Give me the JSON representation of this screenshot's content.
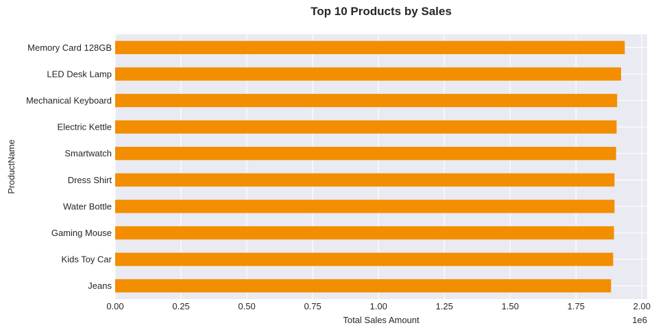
{
  "chart_data": {
    "type": "bar",
    "orientation": "horizontal",
    "title": "Top 10 Products by Sales",
    "xlabel": "Total Sales Amount",
    "ylabel": "ProductName",
    "x_scale_label": "1e6",
    "categories": [
      "Memory Card 128GB",
      "LED Desk Lamp",
      "Mechanical Keyboard",
      "Electric Kettle",
      "Smartwatch",
      "Dress Shirt",
      "Water Bottle",
      "Gaming Mouse",
      "Kids Toy Car",
      "Jeans"
    ],
    "values": [
      1935000,
      1921000,
      1906000,
      1904000,
      1902000,
      1896000,
      1896000,
      1894000,
      1891000,
      1883000
    ],
    "xlim": [
      0,
      2020000
    ],
    "xticks": [
      0,
      250000,
      500000,
      750000,
      1000000,
      1250000,
      1500000,
      1750000,
      2000000
    ],
    "xtick_labels": [
      "0.00",
      "0.25",
      "0.50",
      "0.75",
      "1.00",
      "1.25",
      "1.50",
      "1.75",
      "2.00"
    ],
    "grid": true,
    "colors": {
      "bar": "#f28e00",
      "plot_bg": "#eaeaf2",
      "grid": "#ffffff"
    }
  }
}
